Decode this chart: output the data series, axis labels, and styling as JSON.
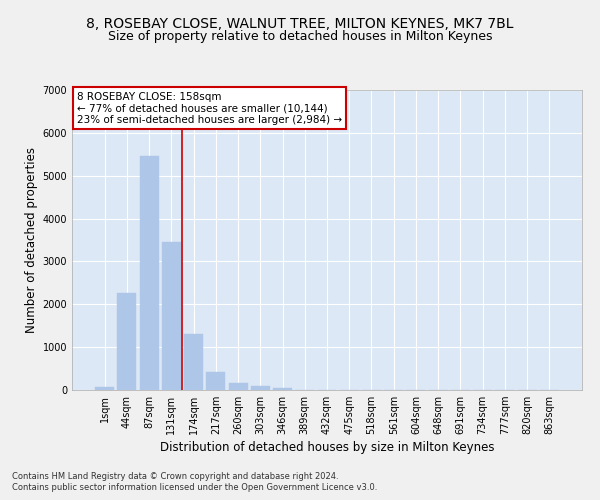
{
  "title_line1": "8, ROSEBAY CLOSE, WALNUT TREE, MILTON KEYNES, MK7 7BL",
  "title_line2": "Size of property relative to detached houses in Milton Keynes",
  "xlabel": "Distribution of detached houses by size in Milton Keynes",
  "ylabel": "Number of detached properties",
  "categories": [
    "1sqm",
    "44sqm",
    "87sqm",
    "131sqm",
    "174sqm",
    "217sqm",
    "260sqm",
    "303sqm",
    "346sqm",
    "389sqm",
    "432sqm",
    "475sqm",
    "518sqm",
    "561sqm",
    "604sqm",
    "648sqm",
    "691sqm",
    "734sqm",
    "777sqm",
    "820sqm",
    "863sqm"
  ],
  "values": [
    75,
    2275,
    5450,
    3450,
    1310,
    430,
    160,
    85,
    55,
    0,
    0,
    0,
    0,
    0,
    0,
    0,
    0,
    0,
    0,
    0,
    0
  ],
  "bar_color": "#aec6e8",
  "bar_edgecolor": "#aec6e8",
  "vline_color": "#cc0000",
  "annotation_text": "8 ROSEBAY CLOSE: 158sqm\n← 77% of detached houses are smaller (10,144)\n23% of semi-detached houses are larger (2,984) →",
  "annotation_box_color": "#ffffff",
  "annotation_box_edgecolor": "#cc0000",
  "ylim": [
    0,
    7000
  ],
  "yticks": [
    0,
    1000,
    2000,
    3000,
    4000,
    5000,
    6000,
    7000
  ],
  "background_color": "#dce8f5",
  "grid_color": "#ffffff",
  "fig_background": "#f0f0f0",
  "footer_line1": "Contains HM Land Registry data © Crown copyright and database right 2024.",
  "footer_line2": "Contains public sector information licensed under the Open Government Licence v3.0.",
  "title_fontsize": 10,
  "subtitle_fontsize": 9,
  "axis_label_fontsize": 8.5,
  "tick_fontsize": 7,
  "annotation_fontsize": 7.5,
  "footer_fontsize": 6
}
